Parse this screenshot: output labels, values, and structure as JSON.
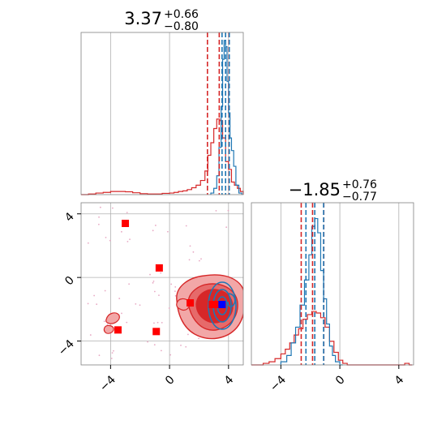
{
  "colors": {
    "series_a": "#d62728",
    "series_b": "#1f77b4",
    "marker_red": "#ff0000",
    "marker_blue": "#0000ff",
    "grid": "#b0b0b0",
    "frame": "#808080",
    "fill_outer": "#f2a7a7",
    "fill_mid": "#e66a6a",
    "fill_inner": "#d62728"
  },
  "chart_data": [
    {
      "type": "histogram",
      "panel": "param1-marginal",
      "title": {
        "value": "3.37",
        "upper": "+0.66",
        "lower": "−0.80"
      },
      "xlim": [
        -6,
        5
      ],
      "series": [
        {
          "color": "#d62728",
          "quantiles": [
            2.57,
            3.37,
            4.03
          ],
          "bins": [
            [
              -6.0,
              0.0
            ],
            [
              -5.5,
              0.004
            ],
            [
              -5.0,
              0.01
            ],
            [
              -4.5,
              0.014
            ],
            [
              -4.0,
              0.02
            ],
            [
              -3.5,
              0.02
            ],
            [
              -3.0,
              0.018
            ],
            [
              -2.5,
              0.012
            ],
            [
              -2.0,
              0.006
            ],
            [
              -1.5,
              0.004
            ],
            [
              -1.0,
              0.004
            ],
            [
              -0.5,
              0.008
            ],
            [
              0.0,
              0.01
            ],
            [
              0.3,
              0.014
            ],
            [
              0.6,
              0.02
            ],
            [
              0.9,
              0.024
            ],
            [
              1.2,
              0.032
            ],
            [
              1.5,
              0.044
            ],
            [
              1.8,
              0.06
            ],
            [
              2.1,
              0.09
            ],
            [
              2.4,
              0.15
            ],
            [
              2.6,
              0.25
            ],
            [
              2.8,
              0.33
            ],
            [
              3.0,
              0.42
            ],
            [
              3.2,
              0.48
            ],
            [
              3.4,
              0.47
            ],
            [
              3.6,
              0.36
            ],
            [
              3.8,
              0.21
            ],
            [
              4.0,
              0.16
            ],
            [
              4.2,
              0.08
            ],
            [
              4.4,
              0.06
            ],
            [
              4.6,
              0.04
            ],
            [
              4.8,
              0.02
            ]
          ]
        },
        {
          "color": "#1f77b4",
          "quantiles": [
            3.56,
            3.8,
            4.05
          ],
          "bins": [
            [
              2.8,
              0.01
            ],
            [
              3.0,
              0.04
            ],
            [
              3.2,
              0.12
            ],
            [
              3.35,
              0.3
            ],
            [
              3.5,
              0.56
            ],
            [
              3.6,
              0.86
            ],
            [
              3.7,
              0.98
            ],
            [
              3.8,
              0.94
            ],
            [
              3.9,
              0.72
            ],
            [
              4.0,
              0.52
            ],
            [
              4.1,
              0.36
            ],
            [
              4.2,
              0.28
            ],
            [
              4.35,
              0.18
            ],
            [
              4.5,
              0.06
            ],
            [
              4.7,
              0.01
            ]
          ]
        }
      ]
    },
    {
      "type": "contour",
      "panel": "joint",
      "xlim": [
        -6,
        5
      ],
      "ylim": [
        -5.5,
        4.7
      ],
      "x_ticks": [
        "−4",
        "0",
        "4"
      ],
      "y_ticks": [
        "4",
        "0",
        "−4"
      ],
      "markers": [
        {
          "x": -3.0,
          "y": 3.4,
          "color": "#ff0000"
        },
        {
          "x": -0.7,
          "y": 0.6,
          "color": "#ff0000"
        },
        {
          "x": 1.4,
          "y": -1.6,
          "color": "#ff0000"
        },
        {
          "x": 2.9,
          "y": -1.7,
          "color": "#ff0000"
        },
        {
          "x": 3.2,
          "y": -1.7,
          "color": "#ff0000"
        },
        {
          "x": -3.5,
          "y": -3.3,
          "color": "#ff0000"
        },
        {
          "x": -0.9,
          "y": -3.4,
          "color": "#ff0000"
        },
        {
          "x": 3.56,
          "y": -1.7,
          "color": "#0000ff"
        }
      ]
    },
    {
      "type": "histogram",
      "panel": "param2-marginal",
      "title": {
        "value": "−1.85",
        "upper": "+0.76",
        "lower": "−0.77"
      },
      "xlim": [
        -6,
        5
      ],
      "x_ticks": [
        "−4",
        "0",
        "4"
      ],
      "series": [
        {
          "color": "#d62728",
          "quantiles": [
            -2.62,
            -1.85,
            -1.09
          ],
          "bins": [
            [
              -6.0,
              0.0
            ],
            [
              -5.2,
              0.01
            ],
            [
              -4.8,
              0.02
            ],
            [
              -4.4,
              0.04
            ],
            [
              -4.0,
              0.07
            ],
            [
              -3.7,
              0.1
            ],
            [
              -3.4,
              0.14
            ],
            [
              -3.1,
              0.19
            ],
            [
              -2.8,
              0.23
            ],
            [
              -2.5,
              0.29
            ],
            [
              -2.2,
              0.32
            ],
            [
              -1.9,
              0.34
            ],
            [
              -1.6,
              0.33
            ],
            [
              -1.3,
              0.3
            ],
            [
              -1.0,
              0.24
            ],
            [
              -0.7,
              0.15
            ],
            [
              -0.4,
              0.08
            ],
            [
              -0.1,
              0.03
            ],
            [
              0.2,
              0.01
            ],
            [
              0.5,
              0.0
            ],
            [
              4.4,
              0.01
            ],
            [
              4.7,
              0.0
            ]
          ]
        },
        {
          "color": "#1f77b4",
          "quantiles": [
            -2.3,
            -1.7,
            -1.1
          ],
          "bins": [
            [
              -4.0,
              0.02
            ],
            [
              -3.6,
              0.06
            ],
            [
              -3.3,
              0.14
            ],
            [
              -3.0,
              0.24
            ],
            [
              -2.7,
              0.38
            ],
            [
              -2.4,
              0.54
            ],
            [
              -2.1,
              0.7
            ],
            [
              -1.9,
              0.88
            ],
            [
              -1.7,
              0.93
            ],
            [
              -1.5,
              0.84
            ],
            [
              -1.3,
              0.6
            ],
            [
              -1.1,
              0.42
            ],
            [
              -0.9,
              0.26
            ],
            [
              -0.7,
              0.12
            ],
            [
              -0.5,
              0.06
            ],
            [
              -0.3,
              0.02
            ],
            [
              0.0,
              0.0
            ]
          ]
        }
      ]
    }
  ]
}
